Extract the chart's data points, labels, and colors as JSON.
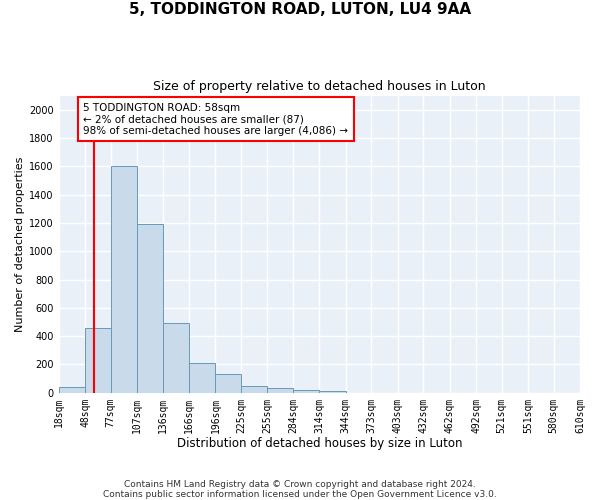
{
  "title1": "5, TODDINGTON ROAD, LUTON, LU4 9AA",
  "title2": "Size of property relative to detached houses in Luton",
  "xlabel": "Distribution of detached houses by size in Luton",
  "ylabel": "Number of detached properties",
  "bar_color": "#c9daea",
  "bar_edge_color": "#6699bb",
  "background_color": "#eaf0f8",
  "grid_color": "#ffffff",
  "red_line_x": 58,
  "annotation_text": "5 TODDINGTON ROAD: 58sqm\n← 2% of detached houses are smaller (87)\n98% of semi-detached houses are larger (4,086) →",
  "bins": [
    18,
    48,
    77,
    107,
    136,
    166,
    196,
    225,
    255,
    284,
    314,
    344,
    373,
    403,
    432,
    462,
    492,
    521,
    551,
    580,
    610
  ],
  "values": [
    40,
    460,
    1600,
    1190,
    490,
    210,
    130,
    50,
    30,
    20,
    15,
    0,
    0,
    0,
    0,
    0,
    0,
    0,
    0,
    0
  ],
  "ylim": [
    0,
    2100
  ],
  "yticks": [
    0,
    200,
    400,
    600,
    800,
    1000,
    1200,
    1400,
    1600,
    1800,
    2000
  ],
  "footer": "Contains HM Land Registry data © Crown copyright and database right 2024.\nContains public sector information licensed under the Open Government Licence v3.0.",
  "title1_fontsize": 11,
  "title2_fontsize": 9,
  "xlabel_fontsize": 8.5,
  "ylabel_fontsize": 8,
  "tick_fontsize": 7,
  "footer_fontsize": 6.5,
  "annot_fontsize": 7.5
}
